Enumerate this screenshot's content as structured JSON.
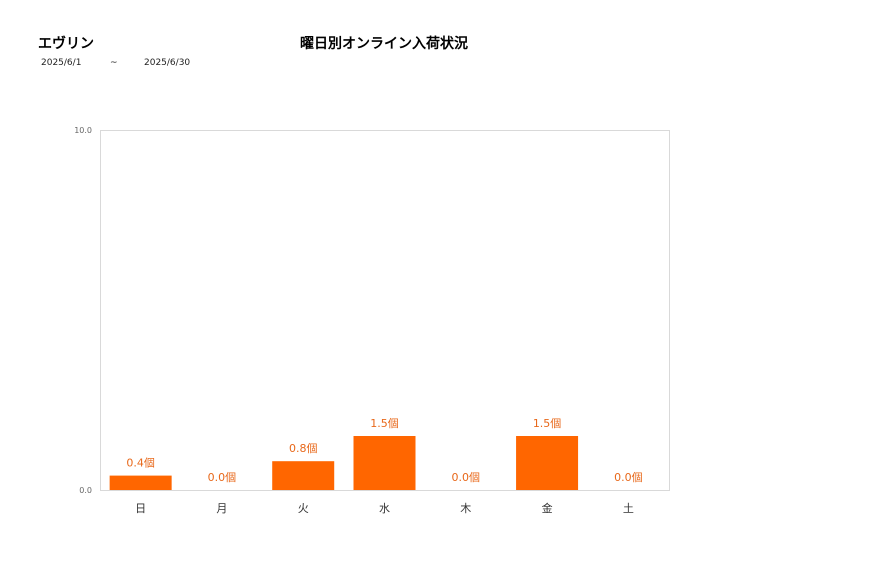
{
  "header": {
    "store_name": "エヴリン",
    "title": "曜日別オンライン入荷状況",
    "period_start": "2025/6/1",
    "period_separator": "~",
    "period_end": "2025/6/30"
  },
  "colors": {
    "bar": "#ff6600",
    "data_label": "#e8681a",
    "axis_border": "#d9d9d9"
  },
  "chart_data": {
    "type": "bar",
    "title": "曜日別オンライン入荷状況",
    "categories": [
      "日",
      "月",
      "火",
      "水",
      "木",
      "金",
      "土"
    ],
    "values": [
      0.4,
      0.0,
      0.8,
      1.5,
      0.0,
      1.5,
      0.0
    ],
    "data_labels": [
      "0.4個",
      "0.0個",
      "0.8個",
      "1.5個",
      "0.0個",
      "1.5個",
      "0.0個"
    ],
    "unit": "個",
    "xlabel": "",
    "ylabel": "",
    "ylim": [
      0,
      10
    ],
    "yticks": [
      "0.0",
      "10.0"
    ],
    "grid": false,
    "legend": "none"
  }
}
